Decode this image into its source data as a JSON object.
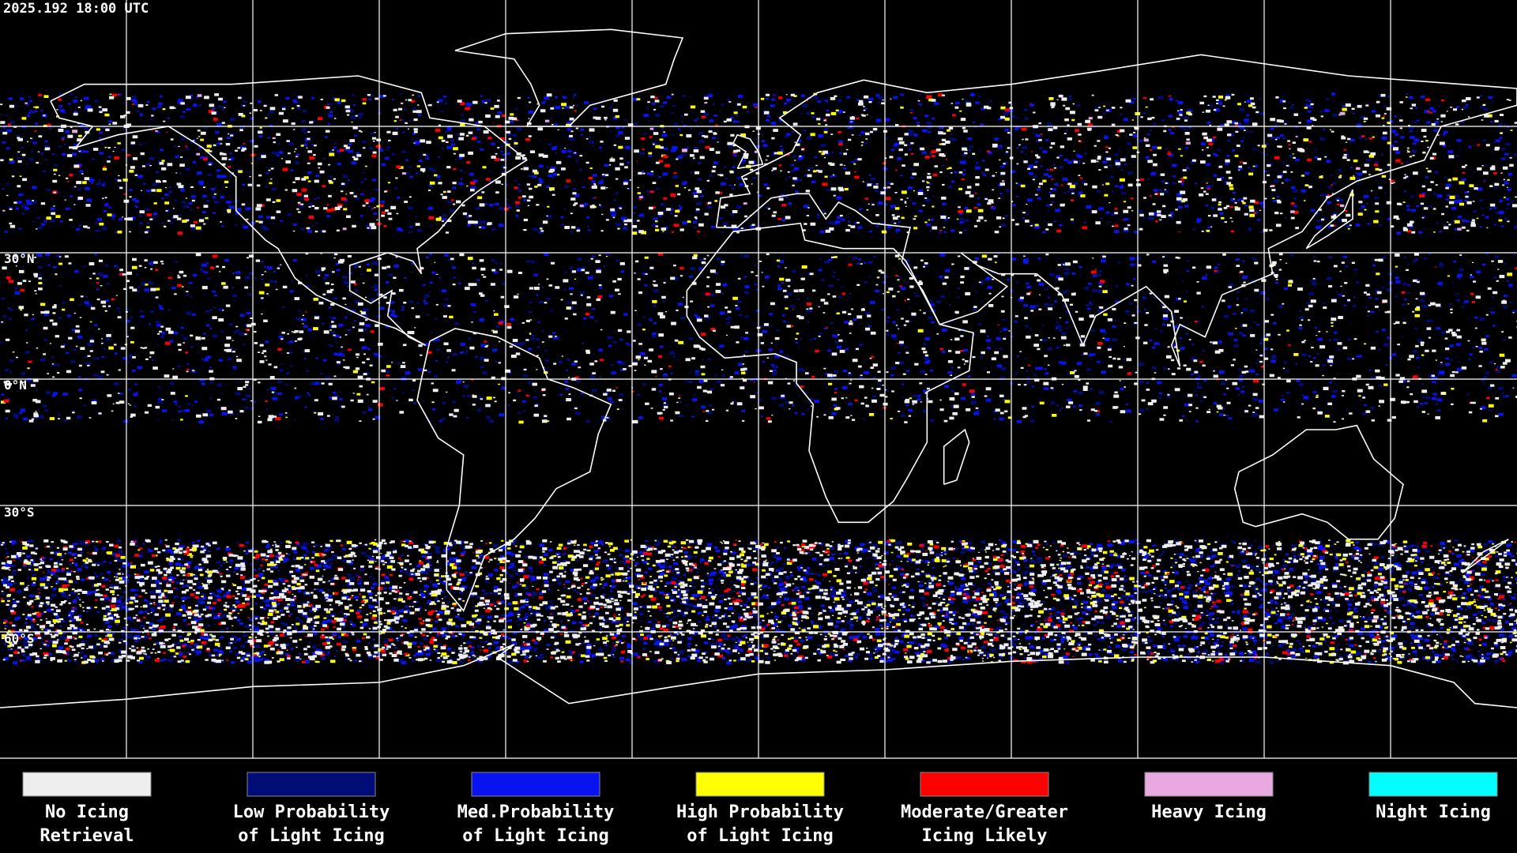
{
  "header": {
    "timestamp": "2025.192 18:00 UTC"
  },
  "map": {
    "latitude_labels": [
      "30°N",
      "0°N",
      "30°S",
      "60°S"
    ]
  },
  "legend": {
    "items": [
      {
        "lines": [
          "No Icing",
          "Retrieval"
        ],
        "color": "#eeeeee"
      },
      {
        "lines": [
          "Low Probability",
          "of Light Icing"
        ],
        "color": "#000c78"
      },
      {
        "lines": [
          "Med.Probability",
          "of Light Icing"
        ],
        "color": "#0814f0"
      },
      {
        "lines": [
          "High Probability",
          "of Light Icing"
        ],
        "color": "#ffff00"
      },
      {
        "lines": [
          "Moderate/Greater",
          "Icing Likely"
        ],
        "color": "#ff0000"
      },
      {
        "lines": [
          "Heavy Icing"
        ],
        "color": "#e8a8e2"
      },
      {
        "lines": [
          "Night Icing"
        ],
        "color": "#00ffff"
      }
    ]
  }
}
